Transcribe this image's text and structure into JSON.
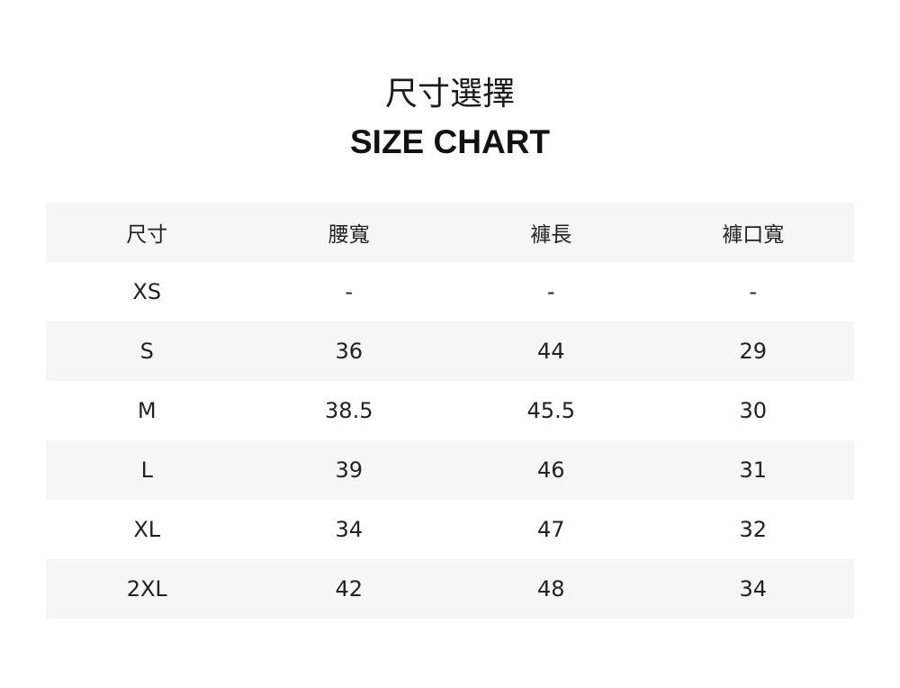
{
  "title_zh": "尺寸選擇",
  "title_en": "SIZE CHART",
  "colors": {
    "row_shade": "#f6f6f6",
    "text": "#222222"
  },
  "table": {
    "headers": [
      "尺寸",
      "腰寬",
      "褲長",
      "褲口寬"
    ],
    "rows": [
      [
        "XS",
        "-",
        "-",
        "-"
      ],
      [
        "S",
        "36",
        "44",
        "29"
      ],
      [
        "M",
        "38.5",
        "45.5",
        "30"
      ],
      [
        "L",
        "39",
        "46",
        "31"
      ],
      [
        "XL",
        "34",
        "47",
        "32"
      ],
      [
        "2XL",
        "42",
        "48",
        "34"
      ]
    ]
  }
}
